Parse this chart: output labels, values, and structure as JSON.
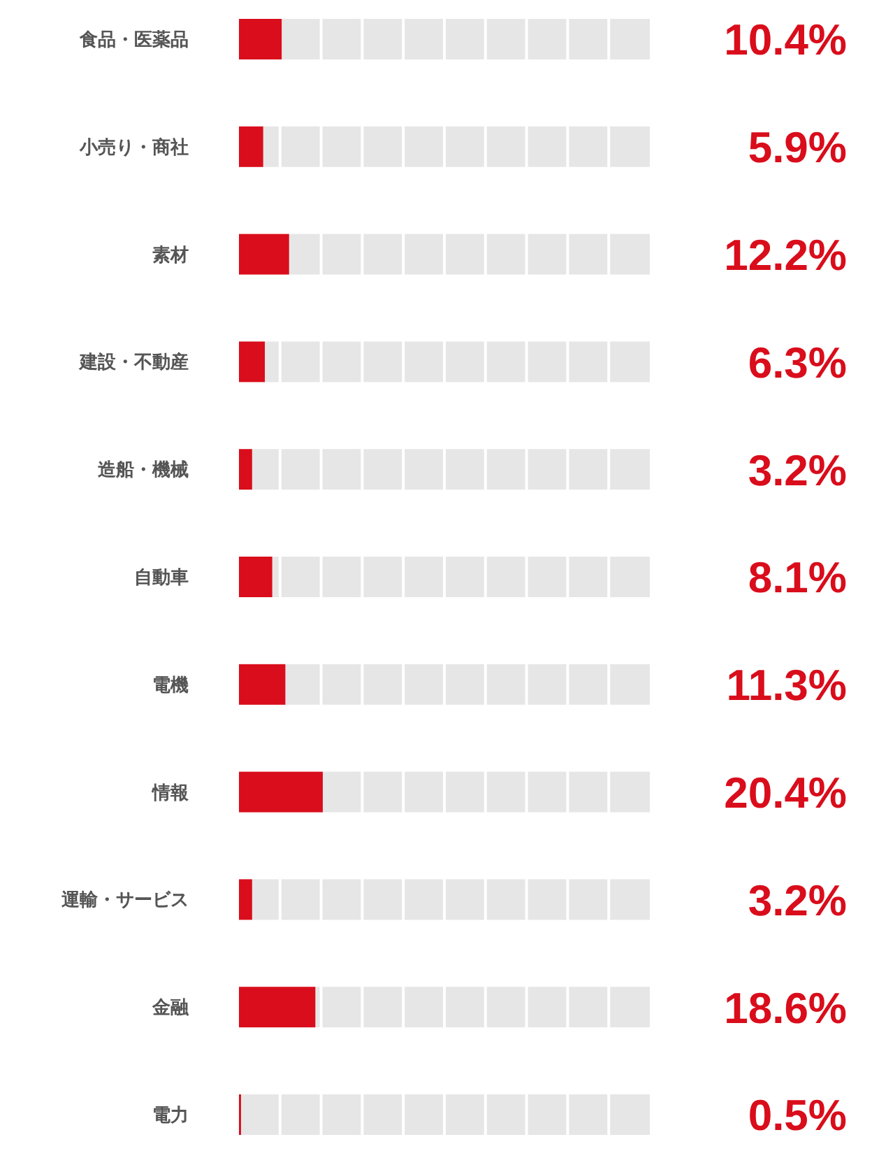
{
  "chart_data": {
    "type": "bar",
    "orientation": "horizontal",
    "categories": [
      "食品・医薬品",
      "小売り・商社",
      "素材",
      "建設・不動産",
      "造船・機械",
      "自動車",
      "電機",
      "情報",
      "運輸・サービス",
      "金融",
      "電力"
    ],
    "values": [
      10.4,
      5.9,
      12.2,
      6.3,
      3.2,
      8.1,
      11.3,
      20.4,
      3.2,
      18.6,
      0.5
    ],
    "value_labels": [
      "10.4%",
      "5.9%",
      "12.2%",
      "6.3%",
      "3.2%",
      "8.1%",
      "11.3%",
      "20.4%",
      "3.2%",
      "18.6%",
      "0.5%"
    ],
    "color": "#d90d1b",
    "xlim": [
      0,
      100
    ]
  }
}
